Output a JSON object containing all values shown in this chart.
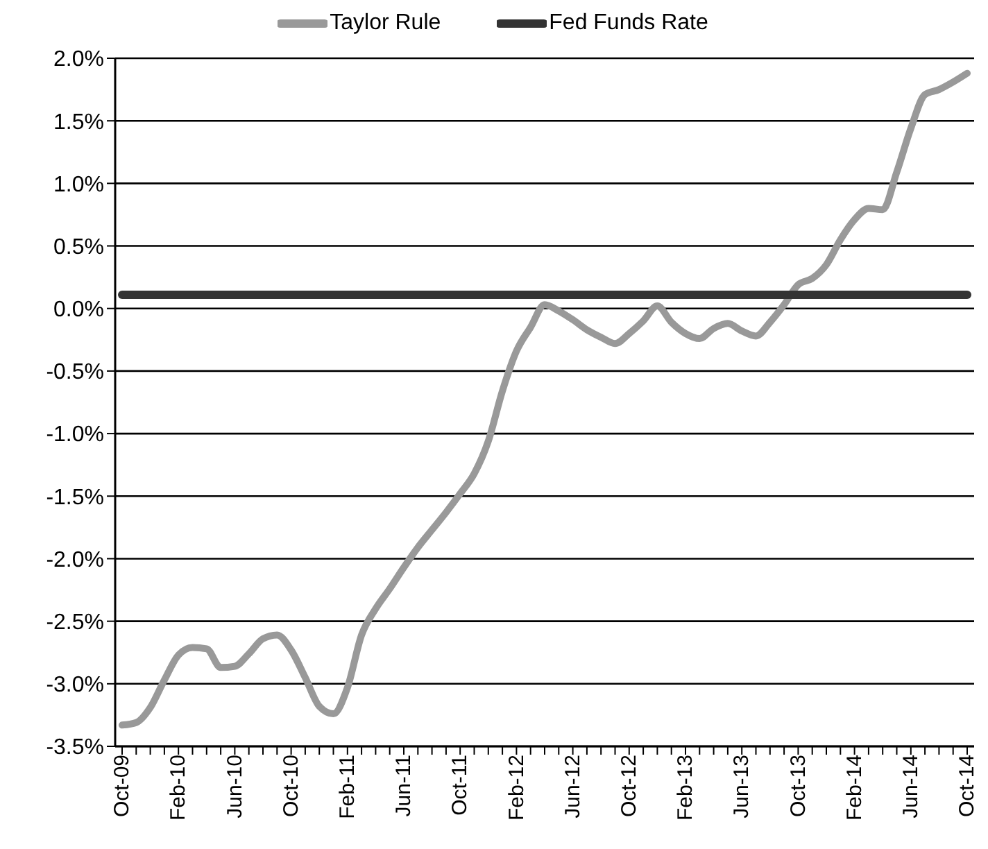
{
  "chart_data": {
    "type": "line",
    "categories": [
      "Oct-09",
      null,
      null,
      null,
      "Feb-10",
      null,
      null,
      null,
      "Jun-10",
      null,
      null,
      null,
      "Oct-10",
      null,
      null,
      null,
      "Feb-11",
      null,
      null,
      null,
      "Jun-11",
      null,
      null,
      null,
      "Oct-11",
      null,
      null,
      null,
      "Feb-12",
      null,
      null,
      null,
      "Jun-12",
      null,
      null,
      null,
      "Oct-12",
      null,
      null,
      null,
      "Feb-13",
      null,
      null,
      null,
      "Jun-13",
      null,
      null,
      null,
      "Oct-13",
      null,
      null,
      null,
      "Feb-14",
      null,
      null,
      null,
      "Jun-14",
      null,
      null,
      null,
      "Oct-14"
    ],
    "series": [
      {
        "name": "Taylor Rule",
        "color": "#999999",
        "values": [
          -3.33,
          -3.31,
          -3.19,
          -2.97,
          -2.77,
          -2.71,
          -2.72,
          -2.87,
          -2.86,
          -2.76,
          -2.64,
          -2.61,
          -2.73,
          -2.95,
          -3.18,
          -3.24,
          -3.03,
          -2.61,
          -2.4,
          -2.24,
          -2.07,
          -1.91,
          -1.77,
          -1.63,
          -1.48,
          -1.32,
          -1.06,
          -0.66,
          -0.34,
          -0.15,
          0.03,
          -0.02,
          -0.09,
          -0.17,
          -0.23,
          -0.28,
          -0.2,
          -0.1,
          0.02,
          -0.11,
          -0.2,
          -0.24,
          -0.16,
          -0.12,
          -0.18,
          -0.22,
          -0.11,
          0.03,
          0.19,
          0.24,
          0.35,
          0.55,
          0.71,
          0.8,
          0.79,
          1.09,
          1.44,
          1.71,
          1.75,
          1.81,
          1.88
        ]
      },
      {
        "name": "Fed Funds Rate",
        "color": "#333333",
        "values": [
          0.11,
          0.11,
          0.11,
          0.11,
          0.11,
          0.11,
          0.11,
          0.11,
          0.11,
          0.11,
          0.11,
          0.11,
          0.11,
          0.11,
          0.11,
          0.11,
          0.11,
          0.11,
          0.11,
          0.11,
          0.11,
          0.11,
          0.11,
          0.11,
          0.11,
          0.11,
          0.11,
          0.11,
          0.11,
          0.11,
          0.11,
          0.11,
          0.11,
          0.11,
          0.11,
          0.11,
          0.11,
          0.11,
          0.11,
          0.11,
          0.11,
          0.11,
          0.11,
          0.11,
          0.11,
          0.11,
          0.11,
          0.11,
          0.11,
          0.11,
          0.11,
          0.11,
          0.11,
          0.11,
          0.11,
          0.11,
          0.11,
          0.11,
          0.11,
          0.11,
          0.11
        ]
      }
    ],
    "ylim": [
      -3.5,
      2.0
    ],
    "yticks": [
      {
        "value": -3.5,
        "label": "-3.5%"
      },
      {
        "value": -3.0,
        "label": "-3.0%"
      },
      {
        "value": -2.5,
        "label": "-2.5%"
      },
      {
        "value": -2.0,
        "label": "-2.0%"
      },
      {
        "value": -1.5,
        "label": "-1.5%"
      },
      {
        "value": -1.0,
        "label": "-1.0%"
      },
      {
        "value": -0.5,
        "label": "-0.5%"
      },
      {
        "value": 0.0,
        "label": "0.0%"
      },
      {
        "value": 0.5,
        "label": "0.5%"
      },
      {
        "value": 1.0,
        "label": "1.0%"
      },
      {
        "value": 1.5,
        "label": "1.5%"
      },
      {
        "value": 2.0,
        "label": "2.0%"
      }
    ],
    "grid": "y",
    "legend": "top",
    "marker": "none",
    "line_style": "solid"
  }
}
